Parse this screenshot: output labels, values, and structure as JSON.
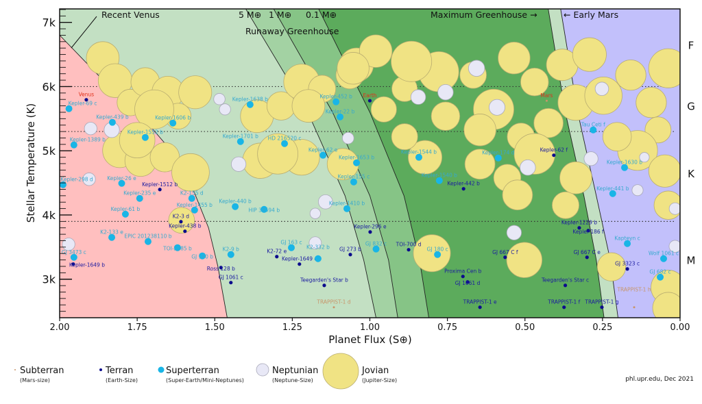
{
  "chart_data": {
    "type": "scatter",
    "xlabel": "Planet Flux (S⊕)",
    "ylabel": "Stellar Temperature (K)",
    "xlim": [
      2.0,
      0.0
    ],
    "ylim": [
      2400,
      7210
    ],
    "x_reversed": true,
    "xticks": [
      {
        "v": 2.0,
        "label": "2.00"
      },
      {
        "v": 1.75,
        "label": "1.75"
      },
      {
        "v": 1.5,
        "label": "1.50"
      },
      {
        "v": 1.25,
        "label": "1.25"
      },
      {
        "v": 1.0,
        "label": "1.00"
      },
      {
        "v": 0.75,
        "label": "0.75"
      },
      {
        "v": 0.5,
        "label": "0.50"
      },
      {
        "v": 0.25,
        "label": "0.25"
      },
      {
        "v": 0.0,
        "label": "0.00"
      }
    ],
    "yticks": [
      {
        "v": 3000,
        "label": "3k"
      },
      {
        "v": 4000,
        "label": "4k"
      },
      {
        "v": 5000,
        "label": "5k"
      },
      {
        "v": 6000,
        "label": "6k"
      },
      {
        "v": 7000,
        "label": "7k"
      }
    ],
    "spectral_classes": [
      {
        "label": "F",
        "t": 6650
      },
      {
        "label": "G",
        "t": 5700
      },
      {
        "label": "K",
        "t": 4650
      },
      {
        "label": "M",
        "t": 3300
      }
    ],
    "spectral_boundaries": [
      6000,
      5300,
      3900
    ],
    "zone_colors": {
      "base": "#c3e0c3",
      "recent_venus": "#ffbfbf",
      "band_5_1": "#a3d2a3",
      "band_1_01": "#86c486",
      "band_01_maxgh": "#5cab5c",
      "maxgh_earlymars": "#c3e0c3",
      "beyond_early_mars": "#c2c0fb"
    },
    "boundaries": {
      "recent_venus": [
        [
          2.0,
          6800
        ],
        [
          1.85,
          6050
        ],
        [
          1.72,
          5450
        ],
        [
          1.64,
          5000
        ],
        [
          1.57,
          4400
        ],
        [
          1.52,
          3800
        ],
        [
          1.49,
          3200
        ],
        [
          1.46,
          2400
        ]
      ],
      "runaway_5": [
        [
          1.4,
          7210
        ],
        [
          1.2,
          5600
        ],
        [
          1.08,
          4300
        ],
        [
          1.02,
          3300
        ],
        [
          0.98,
          2400
        ]
      ],
      "runaway_1": [
        [
          1.31,
          7210
        ],
        [
          1.12,
          5600
        ],
        [
          1.0,
          4300
        ],
        [
          0.94,
          3300
        ],
        [
          0.91,
          2400
        ]
      ],
      "runaway_01": [
        [
          1.165,
          7210
        ],
        [
          1.0,
          5600
        ],
        [
          0.89,
          4300
        ],
        [
          0.84,
          3300
        ],
        [
          0.81,
          2400
        ]
      ],
      "max_greenhouse": [
        [
          0.425,
          7210
        ],
        [
          0.37,
          5600
        ],
        [
          0.31,
          4300
        ],
        [
          0.27,
          3300
        ],
        [
          0.245,
          2400
        ]
      ],
      "early_mars": [
        [
          0.385,
          7210
        ],
        [
          0.33,
          5600
        ],
        [
          0.27,
          4300
        ],
        [
          0.225,
          3300
        ],
        [
          0.2,
          2400
        ]
      ]
    },
    "annotations": {
      "recent_venus": "Recent Venus",
      "m5": "5 M⊕",
      "m1": "1 M⊕",
      "m01": "0.1 M⊕",
      "runaway": "Runaway Greenhouse",
      "max_gh": "Maximum Greenhouse →",
      "early_mars": "← Early Mars"
    },
    "type_colors": {
      "subterran": "#c8956a",
      "terran": "#0c0c8c",
      "superterran": "#19b5e6",
      "neptunian": "#e8e8f6",
      "jovian": "#f0e384",
      "solar": "#e0301a"
    },
    "jovians": [
      [
        1.861,
        6445
      ],
      [
        1.821,
        6093
      ],
      [
        1.772,
        5752
      ],
      [
        1.724,
        6072
      ],
      [
        1.651,
        5912
      ],
      [
        1.563,
        5912
      ],
      [
        1.618,
        5539
      ],
      [
        1.695,
        5645
      ],
      [
        1.806,
        5005
      ],
      [
        1.739,
        4845
      ],
      [
        1.661,
        4899
      ],
      [
        1.578,
        4664
      ],
      [
        1.75,
        5165
      ],
      [
        1.607,
        3917
      ],
      [
        1.364,
        5539
      ],
      [
        1.286,
        5699
      ],
      [
        1.22,
        6072
      ],
      [
        1.154,
        5965
      ],
      [
        1.043,
        6339
      ],
      [
        0.981,
        6552
      ],
      [
        1.065,
        6179
      ],
      [
        0.888,
        5965
      ],
      [
        0.778,
        6232
      ],
      [
        0.866,
        6392
      ],
      [
        0.667,
        6179
      ],
      [
        0.535,
        6445
      ],
      [
        0.601,
        5645
      ],
      [
        0.469,
        6072
      ],
      [
        0.38,
        6339
      ],
      [
        0.292,
        6499
      ],
      [
        0.336,
        5752
      ],
      [
        0.424,
        5432
      ],
      [
        0.513,
        5219
      ],
      [
        0.469,
        4952
      ],
      [
        0.645,
        5325
      ],
      [
        0.756,
        5539
      ],
      [
        0.822,
        4899
      ],
      [
        0.645,
        4792
      ],
      [
        0.557,
        4579
      ],
      [
        0.247,
        5859
      ],
      [
        0.159,
        6179
      ],
      [
        0.093,
        5752
      ],
      [
        0.071,
        5325
      ],
      [
        0.137,
        5005
      ],
      [
        0.203,
        5219
      ],
      [
        0.038,
        6285
      ],
      [
        0.049,
        4685
      ],
      [
        0.038,
        4152
      ],
      [
        0.038,
        2872
      ],
      [
        0.038,
        2552
      ],
      [
        0.8,
        3405
      ],
      [
        0.502,
        3299
      ],
      [
        0.369,
        4152
      ],
      [
        0.221,
        3192
      ],
      [
        0.336,
        4579
      ],
      [
        0.888,
        5219
      ],
      [
        0.955,
        5645
      ],
      [
        1.087,
        4792
      ],
      [
        1.22,
        4899
      ],
      [
        1.353,
        4845
      ],
      [
        1.297,
        4952
      ],
      [
        0.524,
        4312
      ],
      [
        1.054,
        6285
      ],
      [
        1.198,
        5699
      ]
    ],
    "neptunians": [
      [
        1.9,
        5347
      ],
      [
        1.832,
        5325
      ],
      [
        1.905,
        4557
      ],
      [
        1.971,
        3544
      ],
      [
        1.485,
        5805
      ],
      [
        1.467,
        5645
      ],
      [
        1.423,
        4792
      ],
      [
        1.176,
        4024
      ],
      [
        1.07,
        5197
      ],
      [
        0.844,
        5837
      ],
      [
        0.756,
        5912
      ],
      [
        0.656,
        6285
      ],
      [
        0.59,
        5677
      ],
      [
        0.491,
        4739
      ],
      [
        0.535,
        3725
      ],
      [
        0.287,
        4877
      ],
      [
        0.252,
        5965
      ],
      [
        0.115,
        4899
      ],
      [
        0.016,
        4099
      ],
      [
        0.016,
        3512
      ],
      [
        0.137,
        4387
      ],
      [
        1.176,
        3565
      ],
      [
        1.143,
        4205
      ]
    ],
    "labeled_planets": [
      {
        "name": "Venus",
        "s": 1.914,
        "t": 5795,
        "type": "terran",
        "solar": true
      },
      {
        "name": "Earth",
        "s": 1.0,
        "t": 5780,
        "type": "terran",
        "solar": true
      },
      {
        "name": "Mars",
        "s": 0.43,
        "t": 5780,
        "type": "subterran",
        "solar": true
      },
      {
        "name": "Kepler-69 c",
        "s": 1.97,
        "t": 5656,
        "type": "superterran"
      },
      {
        "name": "Kepler-439 b",
        "s": 1.83,
        "t": 5443,
        "type": "superterran"
      },
      {
        "name": "Kepler-1552 b",
        "s": 1.724,
        "t": 5208,
        "type": "superterran"
      },
      {
        "name": "Kepler-1606 b",
        "s": 1.635,
        "t": 5432,
        "type": "superterran"
      },
      {
        "name": "Kepler-1638 b",
        "s": 1.386,
        "t": 5720,
        "type": "superterran"
      },
      {
        "name": "Kepler-1389 b",
        "s": 1.954,
        "t": 5091,
        "type": "superterran"
      },
      {
        "name": "Kepler-1701 b",
        "s": 1.417,
        "t": 5144,
        "type": "superterran"
      },
      {
        "name": "HD 216520 c",
        "s": 1.275,
        "t": 5112,
        "type": "superterran"
      },
      {
        "name": "Kepler-452 b",
        "s": 1.109,
        "t": 5763,
        "type": "superterran"
      },
      {
        "name": "Kepler-22 b",
        "s": 1.096,
        "t": 5528,
        "type": "superterran"
      },
      {
        "name": "Kepler-62 e",
        "s": 1.151,
        "t": 4931,
        "type": "superterran"
      },
      {
        "name": "Kepler-1653 b",
        "s": 1.043,
        "t": 4813,
        "type": "superterran"
      },
      {
        "name": "Kepler-155 c",
        "s": 1.052,
        "t": 4515,
        "type": "superterran"
      },
      {
        "name": "Kepler-298 d",
        "s": 1.989,
        "t": 4472,
        "type": "superterran"
      },
      {
        "name": "Kepler-26 e",
        "s": 1.8,
        "t": 4493,
        "type": "superterran"
      },
      {
        "name": "Kepler-1512 b",
        "s": 1.677,
        "t": 4397,
        "type": "terran"
      },
      {
        "name": "Kepler-235 e",
        "s": 1.742,
        "t": 4259,
        "type": "superterran"
      },
      {
        "name": "K2-155 d",
        "s": 1.574,
        "t": 4259,
        "type": "superterran"
      },
      {
        "name": "Kepler-1455 b",
        "s": 1.565,
        "t": 4077,
        "type": "superterran"
      },
      {
        "name": "Kepler-61 b",
        "s": 1.788,
        "t": 4013,
        "type": "superterran"
      },
      {
        "name": "Kepler-440 b",
        "s": 1.434,
        "t": 4131,
        "type": "superterran"
      },
      {
        "name": "HIP 38594 b",
        "s": 1.341,
        "t": 4088,
        "type": "superterran"
      },
      {
        "name": "Kepler-1410 b",
        "s": 1.074,
        "t": 4099,
        "type": "superterran"
      },
      {
        "name": "K2-3 d",
        "s": 1.609,
        "t": 3896,
        "type": "terran"
      },
      {
        "name": "Kepler-438 b",
        "s": 1.596,
        "t": 3747,
        "type": "terran"
      },
      {
        "name": "K2-133 e",
        "s": 1.832,
        "t": 3651,
        "type": "superterran"
      },
      {
        "name": "EPIC 201238110 b",
        "s": 1.715,
        "t": 3587,
        "type": "superterran"
      },
      {
        "name": "TOI-2285 b",
        "s": 1.62,
        "t": 3491,
        "type": "superterran"
      },
      {
        "name": "GJ 180 b",
        "s": 1.54,
        "t": 3363,
        "type": "superterran"
      },
      {
        "name": "GJ 3473 c",
        "s": 1.954,
        "t": 3341,
        "type": "superterran"
      },
      {
        "name": "Kepler-1649 b",
        "s": 1.956,
        "t": 3235,
        "type": "terran"
      },
      {
        "name": "K2-9 b",
        "s": 1.448,
        "t": 3384,
        "type": "superterran"
      },
      {
        "name": "Ross 128 b",
        "s": 1.48,
        "t": 3181,
        "type": "terran"
      },
      {
        "name": "GJ 1061 c",
        "s": 1.448,
        "t": 2947,
        "type": "terran"
      },
      {
        "name": "GJ 163 c",
        "s": 1.253,
        "t": 3491,
        "type": "superterran"
      },
      {
        "name": "K2-72 e",
        "s": 1.3,
        "t": 3352,
        "type": "terran"
      },
      {
        "name": "Kepler-1649 c",
        "s": 1.227,
        "t": 3235,
        "type": "terran"
      },
      {
        "name": "K2-332 b",
        "s": 1.167,
        "t": 3320,
        "type": "superterran"
      },
      {
        "name": "Teegarden's Star b",
        "s": 1.147,
        "t": 2904,
        "type": "terran"
      },
      {
        "name": "TRAPPIST-1 d",
        "s": 1.116,
        "t": 2563,
        "type": "subterran"
      },
      {
        "name": "Kepler-296 e",
        "s": 0.999,
        "t": 3736,
        "type": "terran"
      },
      {
        "name": "GJ 273 b",
        "s": 1.063,
        "t": 3384,
        "type": "terran"
      },
      {
        "name": "GJ 832 c",
        "s": 0.98,
        "t": 3470,
        "type": "superterran"
      },
      {
        "name": "TOI-700 d",
        "s": 0.875,
        "t": 3459,
        "type": "terran"
      },
      {
        "name": "GJ 180 c",
        "s": 0.782,
        "t": 3384,
        "type": "superterran"
      },
      {
        "name": "GJ 667 C f",
        "s": 0.564,
        "t": 3341,
        "type": "terran"
      },
      {
        "name": "GJ 667 C e",
        "s": 0.3,
        "t": 3341,
        "type": "terran"
      },
      {
        "name": "Proxima Cen b",
        "s": 0.7,
        "t": 3043,
        "type": "terran"
      },
      {
        "name": "GJ 1061 d",
        "s": 0.685,
        "t": 2957,
        "type": "terran"
      },
      {
        "name": "Teegarden's Star c",
        "s": 0.37,
        "t": 2904,
        "type": "terran"
      },
      {
        "name": "TRAPPIST-1 e",
        "s": 0.645,
        "t": 2563,
        "type": "terran"
      },
      {
        "name": "TRAPPIST-1 f",
        "s": 0.374,
        "t": 2563,
        "type": "terran"
      },
      {
        "name": "TRAPPIST-1 g",
        "s": 0.252,
        "t": 2563,
        "type": "terran"
      },
      {
        "name": "TRAPPIST-1 h",
        "s": 0.148,
        "t": 2563,
        "type": "subterran"
      },
      {
        "name": "Kepler-1229 b",
        "s": 0.325,
        "t": 3800,
        "type": "terran"
      },
      {
        "name": "Kepler-186 f",
        "s": 0.296,
        "t": 3757,
        "type": "terran"
      },
      {
        "name": "GJ 3323 c",
        "s": 0.17,
        "t": 3160,
        "type": "terran"
      },
      {
        "name": "Kapteyn c",
        "s": 0.17,
        "t": 3555,
        "type": "superterran"
      },
      {
        "name": "Wolf 1061 c",
        "s": 0.053,
        "t": 3320,
        "type": "superterran"
      },
      {
        "name": "GJ 682 c",
        "s": 0.064,
        "t": 3032,
        "type": "superterran"
      },
      {
        "name": "Kepler-62 f",
        "s": 0.407,
        "t": 4931,
        "type": "terran"
      },
      {
        "name": "Kepler-442 b",
        "s": 0.698,
        "t": 4408,
        "type": "terran"
      },
      {
        "name": "Kepler-1544 b",
        "s": 0.842,
        "t": 4899,
        "type": "superterran"
      },
      {
        "name": "Kepler-1540 b",
        "s": 0.776,
        "t": 4536,
        "type": "superterran"
      },
      {
        "name": "Kepler-174 d",
        "s": 0.586,
        "t": 4888,
        "type": "superterran"
      },
      {
        "name": "Tau Ceti f",
        "s": 0.28,
        "t": 5325,
        "type": "superterran"
      },
      {
        "name": "Kepler-1630 b",
        "s": 0.179,
        "t": 4739,
        "type": "superterran"
      },
      {
        "name": "Kepler-441 b",
        "s": 0.217,
        "t": 4333,
        "type": "superterran"
      }
    ]
  },
  "legend": [
    {
      "type": "subterran",
      "label": "Subterran",
      "sub": "(Mars-size)"
    },
    {
      "type": "terran",
      "label": "Terran",
      "sub": "(Earth-Size)"
    },
    {
      "type": "superterran",
      "label": "Superterran",
      "sub": "(Super-Earth/Mini-Neptunes)"
    },
    {
      "type": "neptunian",
      "label": "Neptunian",
      "sub": "(Neptune-Size)"
    },
    {
      "type": "jovian",
      "label": "Jovian",
      "sub": "(Jupiter-Size)"
    }
  ],
  "credit": "phl.upr.edu, Dec 2021"
}
